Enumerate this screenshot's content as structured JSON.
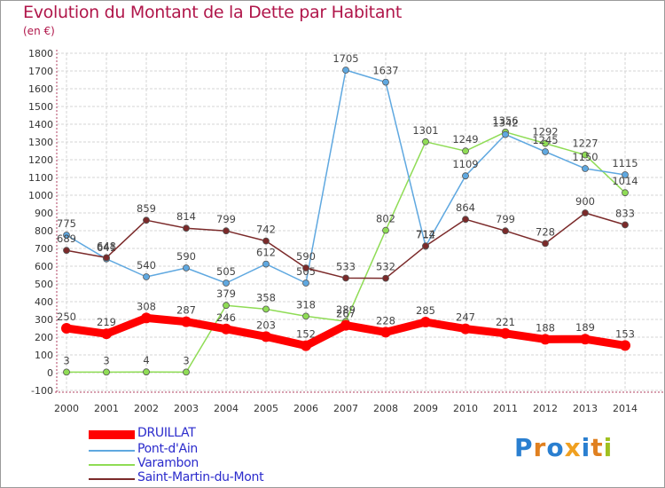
{
  "header": {
    "title": "Evolution du Montant de la Dette par Habitant",
    "subtitle": "(en €)"
  },
  "logo": {
    "letters": [
      "P",
      "r",
      "o",
      "x",
      "i",
      "t",
      "i"
    ],
    "colors": [
      "#2a7fd0",
      "#e08020",
      "#2a7fd0",
      "#f0a020",
      "#2a7fd0",
      "#e08020",
      "#a0c020"
    ]
  },
  "chart_data": {
    "type": "line",
    "title": "Evolution du Montant de la Dette par Habitant",
    "subtitle": "(en €)",
    "x": [
      "2000",
      "2001",
      "2002",
      "2003",
      "2004",
      "2005",
      "2006",
      "2007",
      "2008",
      "2009",
      "2010",
      "2011",
      "2012",
      "2013",
      "2014"
    ],
    "ylim": [
      -100,
      1800
    ],
    "yticks": [
      "-100",
      "0",
      "100",
      "200",
      "300",
      "400",
      "500",
      "600",
      "700",
      "800",
      "900",
      "1000",
      "1100",
      "1200",
      "1300",
      "1400",
      "1500",
      "1600",
      "1700",
      "1800"
    ],
    "grid": true,
    "legend_position": "bottom-left",
    "series": [
      {
        "name": "Varambon",
        "color": "#8fdc55",
        "values": [
          3,
          3,
          4,
          3,
          379,
          358,
          318,
          289,
          802,
          1301,
          1249,
          1356,
          1292,
          1227,
          1014
        ],
        "labels": [
          "3",
          "3",
          "4",
          "3",
          "379",
          "358",
          "318",
          "289",
          "802",
          "1301",
          "1249",
          "1356",
          "1292",
          "1227",
          "1014"
        ]
      },
      {
        "name": "Pont-d'Ain",
        "color": "#5fa8e0",
        "values": [
          775,
          641,
          540,
          590,
          505,
          612,
          505,
          1705,
          1637,
          712,
          1109,
          1342,
          1245,
          1150,
          1115
        ],
        "labels": [
          "775",
          "641",
          "540",
          "590",
          "505",
          "612",
          "505",
          "1705",
          "1637",
          "712",
          "1109",
          "1342",
          "1245",
          "1150",
          "1115"
        ]
      },
      {
        "name": "Saint-Martin-du-Mont",
        "color": "#7b2a2a",
        "values": [
          689,
          648,
          859,
          814,
          799,
          742,
          590,
          533,
          532,
          714,
          864,
          799,
          728,
          900,
          833
        ],
        "labels": [
          "689",
          "648",
          "859",
          "814",
          "799",
          "742",
          "590",
          "533",
          "532",
          "714",
          "864",
          "799",
          "728",
          "900",
          "833"
        ]
      },
      {
        "name": "DRUILLAT",
        "color": "#ff0000",
        "values": [
          250,
          219,
          308,
          287,
          246,
          203,
          152,
          267,
          228,
          285,
          247,
          221,
          188,
          189,
          153
        ],
        "labels": [
          "250",
          "219",
          "308",
          "287",
          "246",
          "203",
          "152",
          "267",
          "228",
          "285",
          "247",
          "221",
          "188",
          "189",
          "153"
        ]
      }
    ],
    "legend": [
      "DRUILLAT",
      "Pont-d'Ain",
      "Varambon",
      "Saint-Martin-du-Mont"
    ]
  }
}
